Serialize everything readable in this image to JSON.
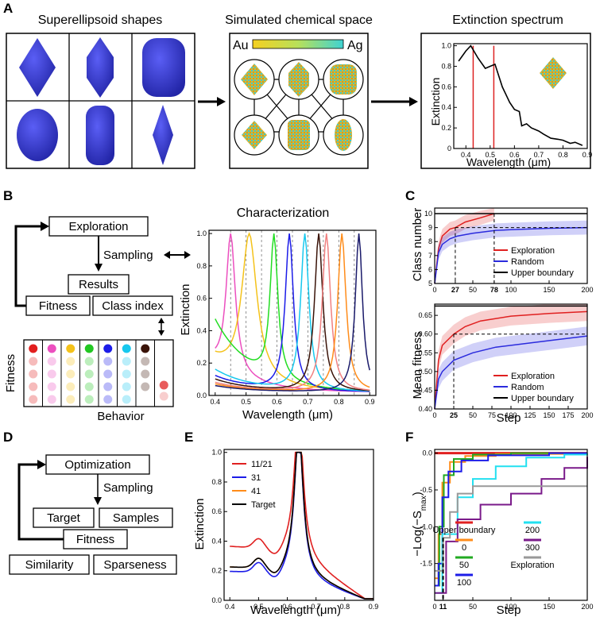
{
  "panels": {
    "A": "A",
    "B": "B",
    "C": "C",
    "D": "D",
    "E": "E",
    "F": "F"
  },
  "panel_a": {
    "shapes_title": "Superellipsoid shapes",
    "chem_title": "Simulated chemical space",
    "spectrum_title": "Extinction spectrum",
    "au_label": "Au",
    "ag_label": "Ag",
    "colors": {
      "shape_blue": "#3b3fd8",
      "au": "#e7b534",
      "ag": "#3fc9c9"
    }
  },
  "panel_b": {
    "boxes": {
      "exploration": "Exploration",
      "sampling": "Sampling",
      "results": "Results",
      "fitness": "Fitness",
      "class_index": "Class index"
    },
    "grid_ylabel": "Fitness",
    "grid_xlabel": "Behavior",
    "grid_colors": [
      "#e21e1e",
      "#ec4fbf",
      "#f4c21a",
      "#22c722",
      "#1c1ce8",
      "#17c8ee",
      "#3a1308",
      "#e85c5c"
    ],
    "chart_title": "Characterization"
  },
  "panel_d": {
    "boxes": {
      "optimization": "Optimization",
      "sampling": "Sampling",
      "target": "Target",
      "samples": "Samples",
      "fitness": "Fitness",
      "similarity": "Similarity",
      "sparseness": "Sparseness"
    }
  },
  "chart_data": [
    {
      "id": "A-spectrum",
      "type": "line",
      "title": "",
      "xlabel": "Wavelength (μm)",
      "ylabel": "Extinction",
      "xlim": [
        0.35,
        0.9
      ],
      "ylim": [
        0,
        1.02
      ],
      "xticks": [
        "0.4",
        "0.5",
        "0.6",
        "0.7",
        "0.8",
        "0.9"
      ],
      "yticks": [
        "0",
        "0.2",
        "0.4",
        "0.6",
        "0.8",
        "1.0"
      ],
      "series": [
        {
          "name": "spectrum",
          "color": "#000000",
          "x": [
            0.37,
            0.4,
            0.42,
            0.45,
            0.48,
            0.5,
            0.52,
            0.55,
            0.58,
            0.6,
            0.62,
            0.63,
            0.65,
            0.67,
            0.7,
            0.72,
            0.75,
            0.78,
            0.8,
            0.83,
            0.85,
            0.88
          ],
          "y": [
            0.85,
            0.95,
            1.0,
            0.88,
            0.78,
            0.8,
            0.82,
            0.6,
            0.45,
            0.38,
            0.36,
            0.22,
            0.24,
            0.2,
            0.17,
            0.14,
            0.1,
            0.09,
            0.08,
            0.05,
            0.06,
            0.03
          ]
        }
      ],
      "vlines": [
        {
          "x": 0.43,
          "color": "#d22"
        },
        {
          "x": 0.515,
          "color": "#d22"
        }
      ]
    },
    {
      "id": "B-characterization",
      "type": "line",
      "title": "Characterization",
      "xlabel": "Wavelength (μm)",
      "ylabel": "Extinction",
      "xlim": [
        0.38,
        0.92
      ],
      "ylim": [
        0,
        1.02
      ],
      "xticks": [
        "0.4",
        "0.5",
        "0.6",
        "0.7",
        "0.8",
        "0.9"
      ],
      "yticks": [
        "0.0",
        "0.2",
        "0.4",
        "0.6",
        "0.8",
        "1.0"
      ],
      "dashed_x": [
        0.45,
        0.5,
        0.55,
        0.6,
        0.65,
        0.7,
        0.75,
        0.8,
        0.85
      ],
      "series": [
        {
          "name": "pink",
          "color": "#ec4fbf",
          "peak": 0.45,
          "width": 0.018,
          "base": 0.18
        },
        {
          "name": "yellow",
          "color": "#f4c21a",
          "peak": 0.51,
          "width": 0.03,
          "base": 0.2
        },
        {
          "name": "green",
          "color": "#22dd22",
          "peak": 0.59,
          "width": 0.015,
          "base": 0.45
        },
        {
          "name": "blue",
          "color": "#1c1ce8",
          "peak": 0.64,
          "width": 0.016,
          "base": 0.1
        },
        {
          "name": "cyan",
          "color": "#17c8ee",
          "peak": 0.69,
          "width": 0.016,
          "base": 0.14
        },
        {
          "name": "black",
          "color": "#3a1308",
          "peak": 0.735,
          "width": 0.016,
          "base": 0.08
        },
        {
          "name": "salmon",
          "color": "#f08080",
          "peak": 0.76,
          "width": 0.016,
          "base": 0.06
        },
        {
          "name": "orange",
          "color": "#ff8c1a",
          "peak": 0.81,
          "width": 0.016,
          "base": 0.05
        },
        {
          "name": "navy",
          "color": "#1a1a6a",
          "peak": 0.865,
          "width": 0.014,
          "base": 0.04
        }
      ]
    },
    {
      "id": "C-class",
      "type": "line",
      "ylabel": "Class number",
      "xlim": [
        0,
        200
      ],
      "ylim": [
        5,
        10.4
      ],
      "xticks": [
        "0",
        "27",
        "50",
        "78",
        "100",
        "150",
        "200"
      ],
      "yticks": [
        "5",
        "6",
        "7",
        "8",
        "9",
        "10"
      ],
      "legend": [
        "Exploration",
        "Random",
        "Upper boundary"
      ],
      "series": [
        {
          "name": "Exploration",
          "color": "#e02020",
          "x": [
            0,
            5,
            10,
            20,
            27,
            40,
            60,
            78
          ],
          "y": [
            5,
            7.5,
            8.4,
            8.9,
            9.0,
            9.4,
            9.7,
            10
          ]
        },
        {
          "name": "Random",
          "color": "#2b2bdd",
          "x": [
            0,
            5,
            10,
            20,
            30,
            50,
            80,
            100,
            150,
            200
          ],
          "y": [
            5,
            7.2,
            7.8,
            8.2,
            8.4,
            8.6,
            8.8,
            8.85,
            8.95,
            9.0
          ]
        },
        {
          "name": "Upper boundary",
          "color": "#000000",
          "x": [
            0,
            200
          ],
          "y": [
            10,
            10
          ]
        }
      ],
      "marks": {
        "first": "27",
        "second": "78"
      }
    },
    {
      "id": "C-fitness",
      "type": "line",
      "ylabel": "Mean fitness",
      "xlabel": "Step",
      "xlim": [
        0,
        200
      ],
      "ylim": [
        0.4,
        0.68
      ],
      "xticks": [
        "0",
        "25",
        "50",
        "75",
        "100",
        "125",
        "150",
        "175",
        "200"
      ],
      "yticks": [
        "0.40",
        "0.45",
        "0.50",
        "0.55",
        "0.60",
        "0.65"
      ],
      "legend": [
        "Exploration",
        "Random",
        "Upper boundary"
      ],
      "series": [
        {
          "name": "Exploration",
          "color": "#e02020",
          "x": [
            0,
            5,
            10,
            20,
            25,
            40,
            60,
            100,
            150,
            200
          ],
          "y": [
            0.4,
            0.53,
            0.57,
            0.59,
            0.6,
            0.62,
            0.635,
            0.648,
            0.655,
            0.66
          ]
        },
        {
          "name": "Random",
          "color": "#2b2bdd",
          "x": [
            0,
            5,
            10,
            25,
            50,
            80,
            120,
            160,
            200
          ],
          "y": [
            0.4,
            0.48,
            0.5,
            0.53,
            0.55,
            0.565,
            0.575,
            0.585,
            0.595
          ]
        },
        {
          "name": "Upper boundary",
          "color": "#000000",
          "x": [
            0,
            200
          ],
          "y": [
            0.675,
            0.675
          ]
        }
      ],
      "mark": "25"
    },
    {
      "id": "E-target",
      "type": "line",
      "xlabel": "Wavelength (μm)",
      "ylabel": "Extinction",
      "xlim": [
        0.38,
        0.9
      ],
      "ylim": [
        0,
        1.02
      ],
      "xticks": [
        "0.4",
        "0.5",
        "0.6",
        "0.7",
        "0.8",
        "0.9"
      ],
      "yticks": [
        "0.0",
        "0.2",
        "0.4",
        "0.6",
        "0.8",
        "1.0"
      ],
      "legend": [
        "11/21",
        "31",
        "41",
        "Target"
      ],
      "series": [
        {
          "name": "11/21",
          "color": "#e02020",
          "base": 0.36
        },
        {
          "name": "31",
          "color": "#1c1ce8",
          "base": 0.19
        },
        {
          "name": "41",
          "color": "#ff8c1a",
          "base": 0.22
        },
        {
          "name": "Target",
          "color": "#000000",
          "base": 0.22
        }
      ]
    },
    {
      "id": "F-similarity",
      "type": "line",
      "xlabel": "Step",
      "ylabel": "−Log(−S_max)",
      "xlim": [
        0,
        200
      ],
      "ylim": [
        -2,
        0.05
      ],
      "xticks": [
        "0",
        "11",
        "50",
        "100",
        "150",
        "200"
      ],
      "yticks": [
        "0.0",
        "-0.5",
        "-1.0",
        "-1.5"
      ],
      "mark": "11",
      "legend": [
        "Upper boundary",
        "0",
        "50",
        "100",
        "200",
        "300",
        "Exploration"
      ],
      "series": [
        {
          "name": "Upper boundary",
          "color": "#e02020"
        },
        {
          "name": "0",
          "color": "#ff8c1a"
        },
        {
          "name": "50",
          "color": "#22aa22"
        },
        {
          "name": "100",
          "color": "#1c1ce8"
        },
        {
          "name": "200",
          "color": "#22e0f0"
        },
        {
          "name": "300",
          "color": "#7a1a8a"
        },
        {
          "name": "Exploration",
          "color": "#999999"
        }
      ]
    }
  ],
  "axis_text": {
    "a_xlabel": "Wavelength (μm)",
    "a_ylabel": "Extinction",
    "b_xlabel": "Wavelength (μm)",
    "b_ylabel": "Extinction",
    "c_ylabel_top": "Class number",
    "c_ylabel_bottom": "Mean fitness",
    "c_xlabel": "Step",
    "e_xlabel": "Wavelength (μm)",
    "e_ylabel": "Extinction",
    "f_xlabel": "Step",
    "f_ylabel": "−Log(−S",
    "f_ylabel_sub": "max",
    "f_ylabel_end": ")"
  }
}
